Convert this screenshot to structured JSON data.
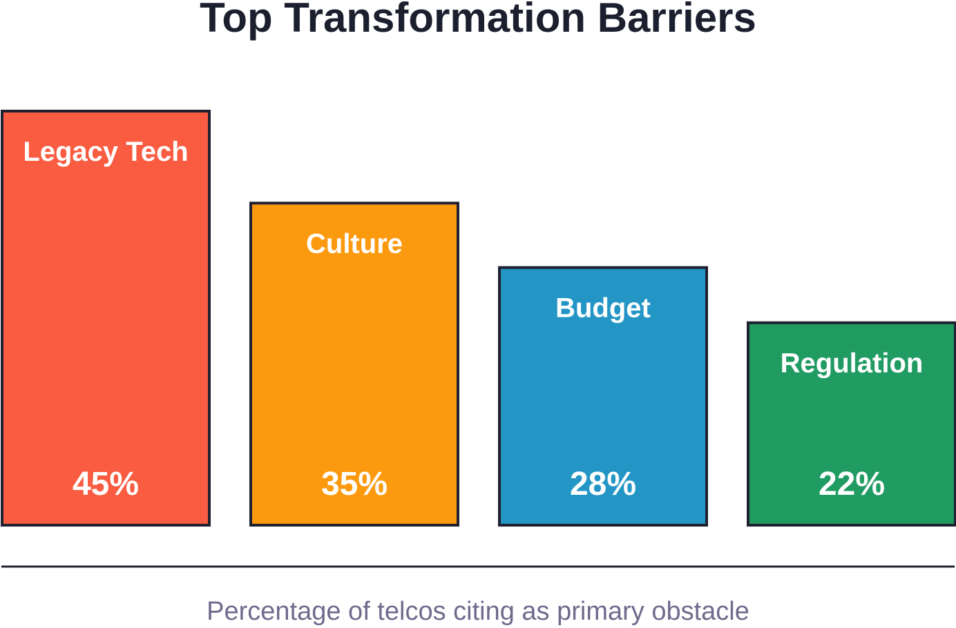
{
  "chart_data": {
    "type": "bar",
    "title": "Top Transformation Barriers",
    "caption": "Percentage of telcos citing as primary obstacle",
    "categories": [
      "Legacy Tech",
      "Culture",
      "Budget",
      "Regulation"
    ],
    "values": [
      45,
      35,
      28,
      22
    ],
    "value_labels": [
      "45%",
      "35%",
      "28%",
      "22%"
    ],
    "colors": [
      "#f95c40",
      "#fc9a0f",
      "#2396c6",
      "#209b62"
    ],
    "edge_color": "#1f2030",
    "baseline_color": "#1f2030",
    "legend": "none",
    "grid": false
  }
}
